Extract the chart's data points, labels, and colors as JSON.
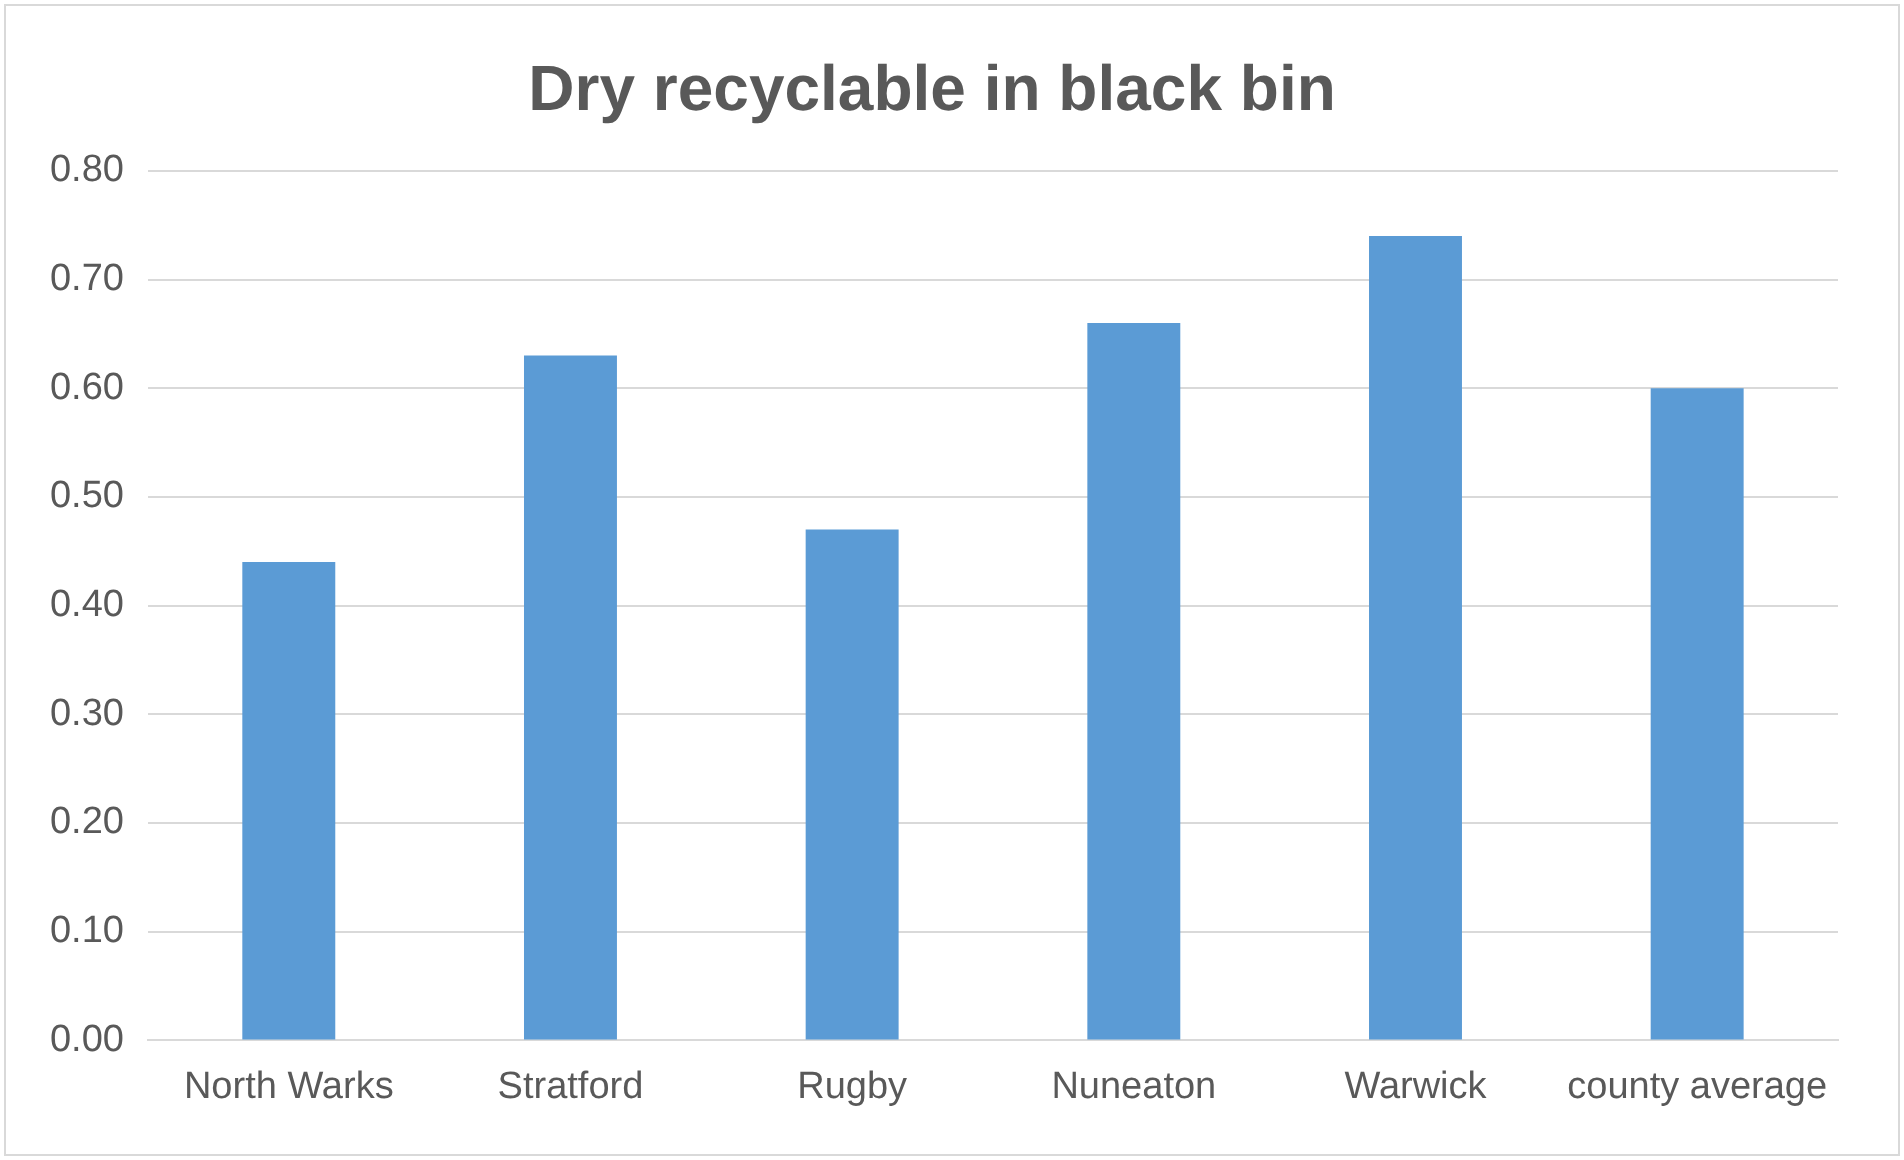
{
  "chart_data": {
    "type": "bar",
    "title": "Dry recyclable in black bin",
    "categories": [
      "North Warks",
      "Stratford",
      "Rugby",
      "Nuneaton",
      "Warwick",
      "county average"
    ],
    "values": [
      0.44,
      0.63,
      0.47,
      0.66,
      0.74,
      0.6
    ],
    "color": "#5b9bd5",
    "ylim": [
      0,
      0.8
    ],
    "yticks": [
      {
        "value": 0,
        "label": "0.00"
      },
      {
        "value": 0.1,
        "label": "0.10"
      },
      {
        "value": 0.2,
        "label": "0.20"
      },
      {
        "value": 0.3,
        "label": "0.30"
      },
      {
        "value": 0.4,
        "label": "0.40"
      },
      {
        "value": 0.5,
        "label": "0.50"
      },
      {
        "value": 0.6,
        "label": "0.60"
      },
      {
        "value": 0.7,
        "label": "0.70"
      },
      {
        "value": 0.8,
        "label": "0.80"
      }
    ],
    "grid": "y",
    "legend": false
  }
}
